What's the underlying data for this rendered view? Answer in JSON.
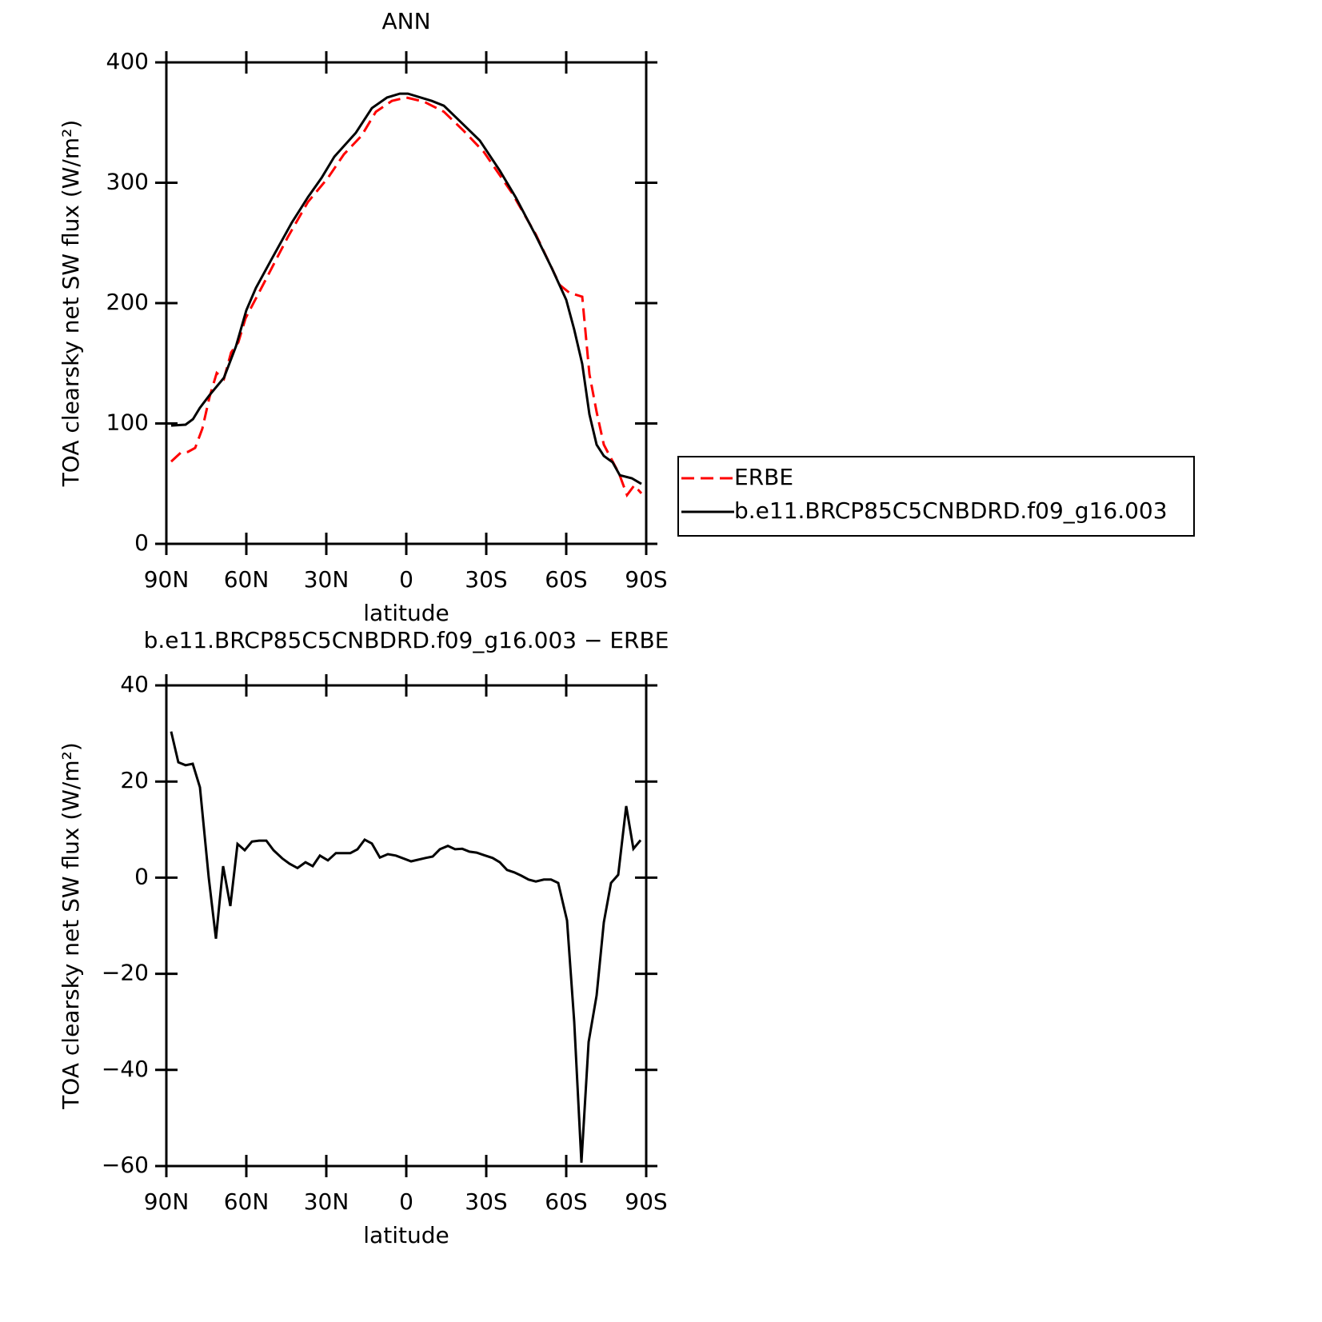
{
  "chart_data": [
    {
      "type": "line",
      "title": "ANN",
      "xlabel": "latitude",
      "ylabel": "TOA clearsky net SW flux (W/m²)",
      "xlim": [
        90,
        -90
      ],
      "xticks": [
        {
          "value": 90,
          "label": "90N"
        },
        {
          "value": 60,
          "label": "60N"
        },
        {
          "value": 30,
          "label": "30N"
        },
        0,
        {
          "value": -30,
          "label": "30S"
        },
        {
          "value": -60,
          "label": "60S"
        },
        {
          "value": -90,
          "label": "90S"
        }
      ],
      "ylim": [
        0,
        400
      ],
      "yticks": [
        0,
        100,
        200,
        300,
        400
      ],
      "legend": "right",
      "series": [
        {
          "name": "ERBE",
          "color": "#ff0000",
          "dash": "dashed",
          "x": [
            88.2,
            84.6,
            81.9,
            79.2,
            76.5,
            73.8,
            71.1,
            68.4,
            65.7,
            63,
            60.3,
            53.4,
            44.4,
            36.9,
            29.4,
            23.4,
            16.8,
            11.4,
            5.4,
            0,
            -6.6,
            -14.1,
            -21.6,
            -29.1,
            -39.6,
            -48.6,
            -57.6,
            -61.2,
            -66,
            -68.7,
            -71.4,
            -74.1,
            -77.1,
            -79.8,
            -82.8,
            -85.5,
            -88.2
          ],
          "values": [
            68.4,
            75.7,
            76.4,
            79.7,
            95.7,
            122,
            142,
            137,
            159,
            167.4,
            187.4,
            216.6,
            255,
            284,
            304,
            323.6,
            339,
            359,
            368,
            370.8,
            367.4,
            359,
            343,
            325.6,
            291.7,
            257,
            215,
            208.6,
            205.3,
            141,
            109.6,
            82.4,
            69.8,
            58.5,
            40.5,
            48.5,
            41.9
          ]
        },
        {
          "name": "b.e11.BRCP85C5CNBDRD.f09_g16.003",
          "color": "#000000",
          "dash": "solid",
          "x": [
            88.2,
            82.8,
            80,
            77.4,
            73.8,
            68.4,
            63.9,
            60,
            56.4,
            50.4,
            42.9,
            36.9,
            31.8,
            27,
            18.9,
            12.9,
            7.2,
            2.4,
            -0.6,
            -9.6,
            -14.1,
            -21.6,
            -27.6,
            -35.1,
            -41.1,
            -48.6,
            -54.6,
            -60,
            -63,
            -66,
            -68.7,
            -71.4,
            -74.1,
            -77.4,
            -80.1,
            -84.6,
            -88.2
          ],
          "values": [
            98.3,
            99,
            103.6,
            113,
            123.6,
            138,
            164,
            194,
            212.6,
            237,
            267,
            288,
            304,
            321.6,
            341.5,
            362,
            370.8,
            374,
            374,
            368,
            364,
            348,
            335,
            310,
            287.7,
            256,
            229,
            202.7,
            178,
            149.5,
            107.6,
            82.4,
            73,
            67.8,
            57,
            54.5,
            49.8
          ]
        }
      ]
    },
    {
      "type": "line",
      "title": "b.e11.BRCP85C5CNBDRD.f09_g16.003 − ERBE",
      "xlabel": "latitude",
      "ylabel": "TOA clearsky net SW flux (W/m²)",
      "xlim": [
        90,
        -90
      ],
      "xticks": [
        {
          "value": 90,
          "label": "90N"
        },
        {
          "value": 60,
          "label": "60N"
        },
        {
          "value": 30,
          "label": "30N"
        },
        0,
        {
          "value": -30,
          "label": "30S"
        },
        {
          "value": -60,
          "label": "60S"
        },
        {
          "value": -90,
          "label": "90S"
        }
      ],
      "ylim": [
        -60,
        40
      ],
      "yticks": [
        {
          "value": -60,
          "label": "−60"
        },
        {
          "value": -40,
          "label": "−40"
        },
        {
          "value": -20,
          "label": "−20"
        },
        0,
        20,
        40
      ],
      "series": [
        {
          "color": "#000000",
          "dash": "solid",
          "x": [
            88.2,
            85.5,
            82.8,
            80.1,
            77.4,
            74.1,
            71.4,
            68.7,
            66,
            63.3,
            60.6,
            57.9,
            55.2,
            52.5,
            49.8,
            46.5,
            43.8,
            40.8,
            37.8,
            35.1,
            32.4,
            29.4,
            26.4,
            23.4,
            21,
            18.3,
            15.6,
            12.9,
            9.9,
            6.9,
            3.9,
            -1.8,
            -7.2,
            -9.9,
            -12.6,
            -15.6,
            -18.3,
            -21,
            -23.7,
            -26.4,
            -29.1,
            -32.4,
            -35.1,
            -37.8,
            -40.5,
            -43.2,
            -45.9,
            -48.6,
            -51.6,
            -54.3,
            -57,
            -60.3,
            -63,
            -65.7,
            -68.4,
            -71.4,
            -74.1,
            -76.8,
            -79.5,
            -82.5,
            -85.2,
            -87.9
          ],
          "values": [
            30.4,
            24,
            23.4,
            23.7,
            18.8,
            0,
            -12.7,
            2.4,
            -5.9,
            7,
            5.7,
            7.5,
            7.7,
            7.7,
            5.7,
            4,
            2.9,
            2,
            3.2,
            2.4,
            4.6,
            3.6,
            5.1,
            5.1,
            5.1,
            5.9,
            7.9,
            7.1,
            4.2,
            4.9,
            4.6,
            3.4,
            4.1,
            4.4,
            5.9,
            6.6,
            5.9,
            6,
            5.4,
            5.2,
            4.7,
            4.1,
            3.2,
            1.6,
            1.1,
            0.4,
            -0.4,
            -0.8,
            -0.4,
            -0.4,
            -1.1,
            -8.9,
            -30,
            -59.3,
            -34.2,
            -24.5,
            -9.3,
            -1.1,
            0.6,
            14.9,
            6,
            7.8
          ]
        }
      ]
    }
  ]
}
